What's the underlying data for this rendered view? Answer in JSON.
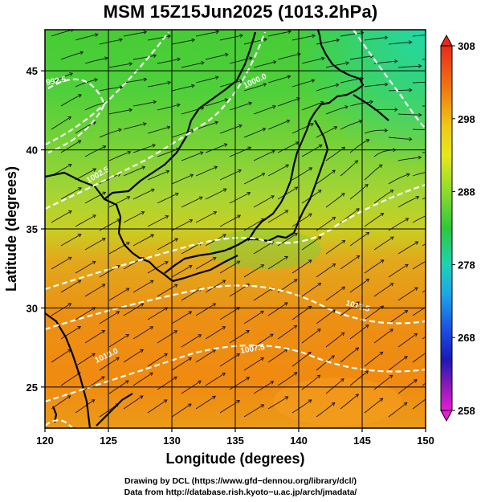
{
  "title": "MSM 15Z15Jun2025 (1013.2hPa)",
  "map": {
    "xlabel": "Longitude (degrees)",
    "ylabel": "Latitude  (degrees)",
    "x_ticks": [
      "120",
      "125",
      "130",
      "135",
      "140",
      "145",
      "150"
    ],
    "y_ticks": [
      "25",
      "30",
      "35",
      "40",
      "45"
    ],
    "x_range": [
      120,
      150
    ],
    "y_range": [
      22.4,
      47.6
    ],
    "grid": true,
    "field": "temperature (K) with streamlines and pressure contours"
  },
  "colorbar": {
    "ticks": [
      "308",
      "298",
      "288",
      "278",
      "268",
      "258"
    ],
    "range": [
      258,
      308
    ]
  },
  "contours": [
    {
      "label": "992.5"
    },
    {
      "label": "1000.0"
    },
    {
      "label": "1002.5"
    },
    {
      "label": "1007.5"
    },
    {
      "label": "1010.0"
    },
    {
      "label": "1012.5"
    }
  ],
  "credits": {
    "line1": "Drawing by DCL (https://www.gfd−dennou.org/library/dcl/)",
    "line2": "Data from http://database.rish.kyoto−u.ac.jp/arch/jmadata/"
  }
}
